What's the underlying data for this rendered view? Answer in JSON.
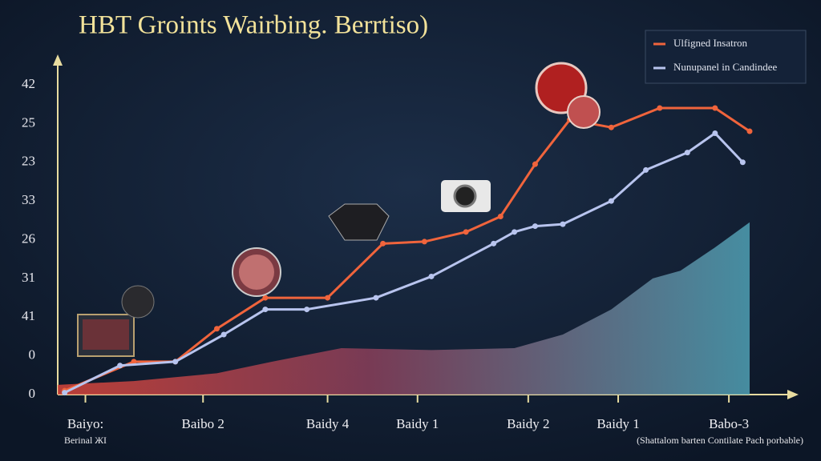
{
  "chart_data": {
    "type": "line",
    "title": "HBT Groints Wairbing. Berrtiso)",
    "y_labels": [
      "0",
      "0",
      "41",
      "31",
      "26",
      "33",
      "23",
      "25",
      "42"
    ],
    "xlim": [
      0,
      10
    ],
    "ylim": [
      0,
      8
    ],
    "xticks": [
      {
        "value": 0.4,
        "label": "Baiyo:"
      },
      {
        "value": 2.1,
        "label": "Baibo 2"
      },
      {
        "value": 3.9,
        "label": "Baidy 4"
      },
      {
        "value": 5.2,
        "label": "Baidy 1"
      },
      {
        "value": 6.8,
        "label": "Baidy 2"
      },
      {
        "value": 8.1,
        "label": "Baidy 1"
      },
      {
        "value": 9.7,
        "label": "Babo-3"
      }
    ],
    "x_sublabels": [
      "Berinal ЖI",
      "(Shattalom barten Contilate Pach porbable)"
    ],
    "legend_position": "upper right",
    "series": [
      {
        "name": "Ulfigned Insatron",
        "color": "#f0643c",
        "x": [
          0.1,
          1.1,
          1.7,
          2.3,
          3.0,
          3.9,
          4.7,
          5.3,
          5.9,
          6.4,
          6.9,
          7.4,
          8.0,
          8.7,
          9.5,
          10.0
        ],
        "values": [
          0.1,
          0.85,
          0.85,
          1.7,
          2.5,
          2.5,
          3.9,
          3.95,
          4.2,
          4.6,
          5.95,
          7.1,
          6.9,
          7.4,
          7.4,
          6.8
        ]
      },
      {
        "name": "Nunupanel in Candindee",
        "color": "#b8c4ee",
        "x": [
          0.1,
          0.9,
          1.7,
          2.4,
          3.0,
          3.6,
          4.6,
          5.4,
          6.3,
          6.6,
          6.9,
          7.3,
          8.0,
          8.5,
          9.1,
          9.5,
          9.9
        ],
        "values": [
          0.05,
          0.75,
          0.85,
          1.55,
          2.2,
          2.2,
          2.5,
          3.05,
          3.9,
          4.2,
          4.35,
          4.4,
          5.0,
          5.8,
          6.25,
          6.75,
          6.0
        ]
      },
      {
        "type": "area",
        "color": "#5fa8b8",
        "x": [
          0,
          1.1,
          2.3,
          3.1,
          4.1,
          5.4,
          6.6,
          7.3,
          8.0,
          8.6,
          9.0,
          9.5,
          10.0
        ],
        "values": [
          0.25,
          0.35,
          0.55,
          0.85,
          1.2,
          1.15,
          1.2,
          1.55,
          2.2,
          3.0,
          3.2,
          3.8,
          4.45
        ]
      }
    ]
  }
}
